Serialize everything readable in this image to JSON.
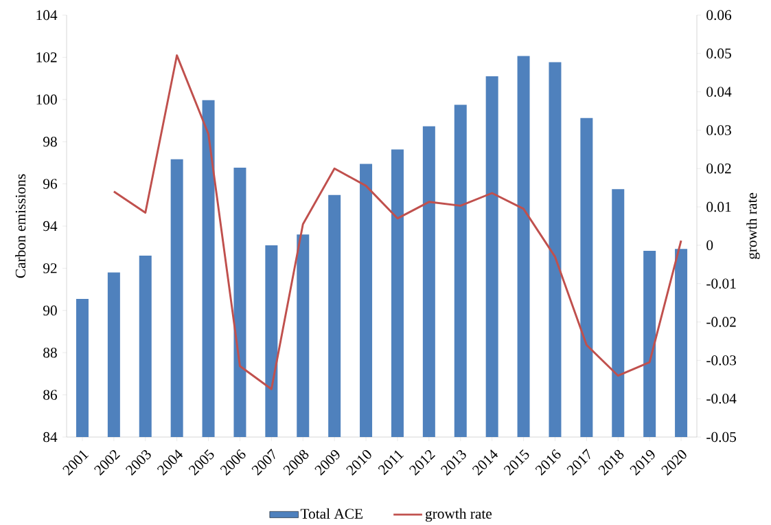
{
  "chart_data": {
    "type": "bar",
    "categories": [
      "2001",
      "2002",
      "2003",
      "2004",
      "2005",
      "2006",
      "2007",
      "2008",
      "2009",
      "2010",
      "2011",
      "2012",
      "2013",
      "2014",
      "2015",
      "2016",
      "2017",
      "2018",
      "2019",
      "2020"
    ],
    "series": [
      {
        "name": "Total ACE",
        "color": "#4f81bd",
        "values": [
          90.55,
          91.8,
          92.6,
          97.17,
          99.97,
          96.77,
          93.09,
          93.6,
          95.47,
          96.95,
          97.63,
          98.73,
          99.75,
          101.1,
          102.06,
          101.77,
          99.12,
          95.75,
          92.83,
          92.92
        ]
      },
      {
        "name": "growth rate",
        "type": "line",
        "axis": "y2",
        "color": "#c0504d",
        "values": [
          null,
          0.014,
          0.0085,
          0.0495,
          0.029,
          -0.0315,
          -0.0375,
          0.0055,
          0.02,
          0.0155,
          0.007,
          0.0113,
          0.0103,
          0.0136,
          0.0095,
          -0.003,
          -0.026,
          -0.034,
          -0.0305,
          0.0012
        ]
      }
    ],
    "ylabel": "Carbon emissions",
    "y2label": "growth rate",
    "ylim": [
      84,
      104
    ],
    "yticks": [
      84,
      86,
      88,
      90,
      92,
      94,
      96,
      98,
      100,
      102,
      104
    ],
    "y2lim": [
      -0.05,
      0.06
    ],
    "y2ticks": [
      -0.05,
      -0.04,
      -0.03,
      -0.02,
      -0.01,
      0,
      0.01,
      0.02,
      0.03,
      0.04,
      0.05,
      0.06
    ],
    "legend": "bottom"
  }
}
